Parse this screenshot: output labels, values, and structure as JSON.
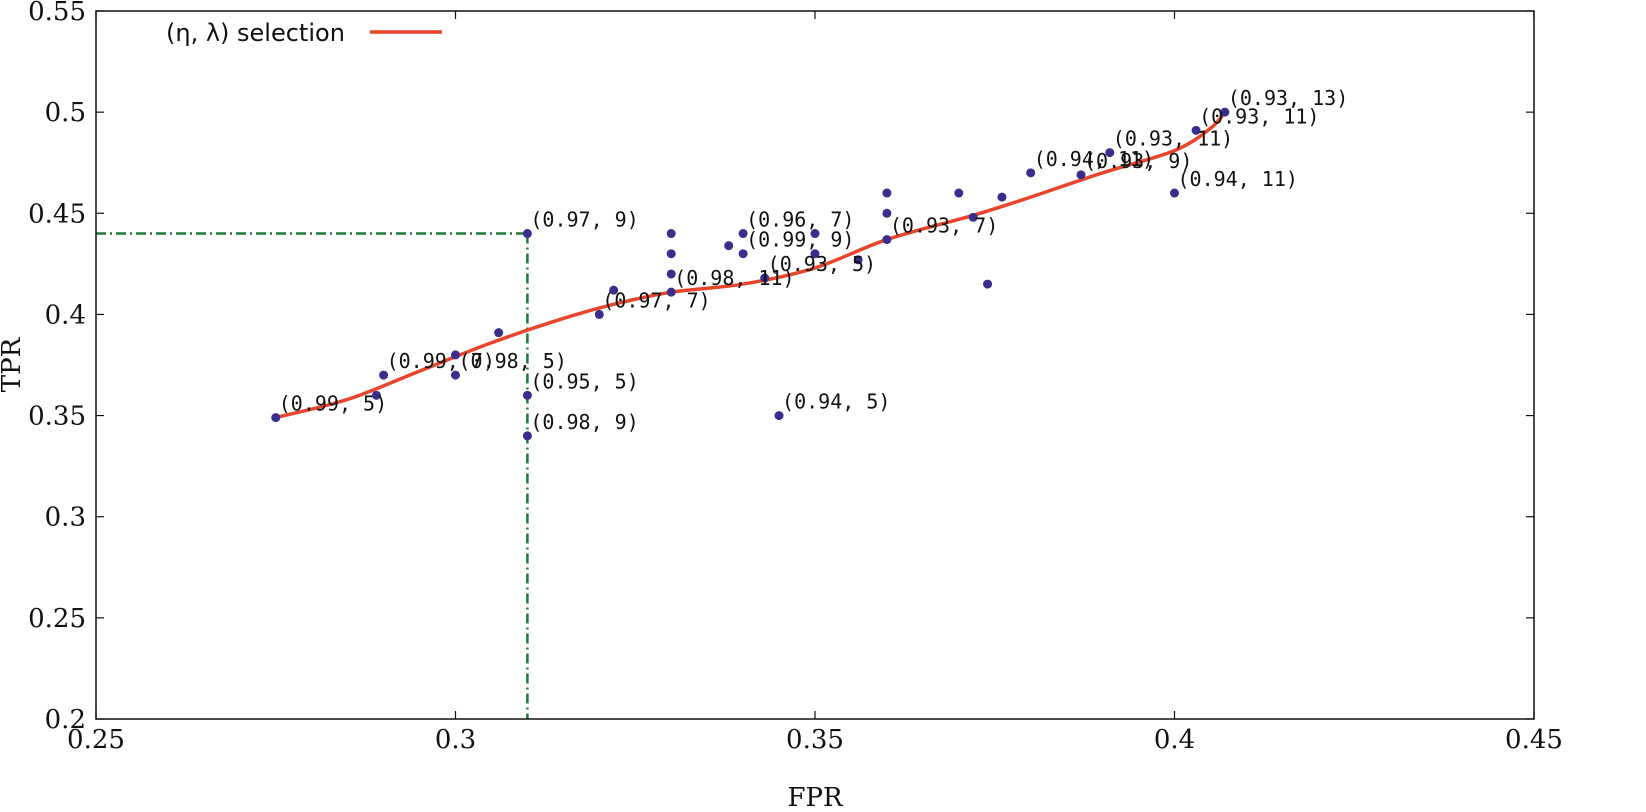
{
  "chart_data": {
    "type": "scatter",
    "xlabel": "FPR",
    "ylabel": "TPR",
    "xlim": [
      0.25,
      0.45
    ],
    "ylim": [
      0.2,
      0.55
    ],
    "x_ticks": [
      "0.25",
      "0.3",
      "0.35",
      "0.4",
      "0.45"
    ],
    "y_ticks": [
      "0.2",
      "0.25",
      "0.3",
      "0.35",
      "0.4",
      "0.45",
      "0.5",
      "0.55"
    ],
    "grid": false,
    "legend": {
      "placement": "top-left",
      "entries": [
        {
          "label": "(η, λ) selection",
          "color": "#e8452a"
        }
      ]
    },
    "points_color": "#3a2e8c",
    "curve_color": "#e8452a",
    "reference_color": "#1f7a3a",
    "points": [
      {
        "x": 0.275,
        "y": 0.349,
        "label": "(0.99, 5)"
      },
      {
        "x": 0.29,
        "y": 0.37,
        "label": "(0.99, 7)"
      },
      {
        "x": 0.289,
        "y": 0.36
      },
      {
        "x": 0.3,
        "y": 0.38
      },
      {
        "x": 0.3,
        "y": 0.37,
        "label": "(0.98, 5)"
      },
      {
        "x": 0.306,
        "y": 0.391
      },
      {
        "x": 0.31,
        "y": 0.44,
        "label": "(0.97, 9)"
      },
      {
        "x": 0.31,
        "y": 0.36,
        "label": "(0.95, 5)"
      },
      {
        "x": 0.31,
        "y": 0.34,
        "label": "(0.98, 9)"
      },
      {
        "x": 0.32,
        "y": 0.4,
        "label": "(0.97, 7)"
      },
      {
        "x": 0.322,
        "y": 0.412
      },
      {
        "x": 0.33,
        "y": 0.44
      },
      {
        "x": 0.33,
        "y": 0.43
      },
      {
        "x": 0.33,
        "y": 0.42
      },
      {
        "x": 0.33,
        "y": 0.411,
        "label": "(0.98, 11)"
      },
      {
        "x": 0.338,
        "y": 0.434
      },
      {
        "x": 0.34,
        "y": 0.44,
        "label": "(0.96, 7)"
      },
      {
        "x": 0.34,
        "y": 0.43,
        "label": "(0.99, 9)"
      },
      {
        "x": 0.345,
        "y": 0.35,
        "label": "(0.94, 5)"
      },
      {
        "x": 0.35,
        "y": 0.44
      },
      {
        "x": 0.35,
        "y": 0.43
      },
      {
        "x": 0.343,
        "y": 0.418,
        "label": "(0.93, 5)"
      },
      {
        "x": 0.356,
        "y": 0.427
      },
      {
        "x": 0.36,
        "y": 0.46
      },
      {
        "x": 0.36,
        "y": 0.45
      },
      {
        "x": 0.36,
        "y": 0.437,
        "label": "(0.93, 7)"
      },
      {
        "x": 0.37,
        "y": 0.46
      },
      {
        "x": 0.372,
        "y": 0.448
      },
      {
        "x": 0.374,
        "y": 0.415
      },
      {
        "x": 0.376,
        "y": 0.458
      },
      {
        "x": 0.38,
        "y": 0.47,
        "label": "(0.94, 11)"
      },
      {
        "x": 0.387,
        "y": 0.469,
        "label": "(0.93, 9)"
      },
      {
        "x": 0.391,
        "y": 0.48,
        "label": "(0.93, 11)"
      },
      {
        "x": 0.4,
        "y": 0.46,
        "label": "(0.94, 11)"
      },
      {
        "x": 0.403,
        "y": 0.491,
        "label": "(0.93, 11)"
      },
      {
        "x": 0.407,
        "y": 0.5,
        "label": "(0.93, 13)"
      }
    ],
    "curve": [
      {
        "x": 0.275,
        "y": 0.349
      },
      {
        "x": 0.285,
        "y": 0.358
      },
      {
        "x": 0.295,
        "y": 0.372
      },
      {
        "x": 0.305,
        "y": 0.386
      },
      {
        "x": 0.315,
        "y": 0.398
      },
      {
        "x": 0.322,
        "y": 0.405
      },
      {
        "x": 0.33,
        "y": 0.411
      },
      {
        "x": 0.34,
        "y": 0.415
      },
      {
        "x": 0.35,
        "y": 0.423
      },
      {
        "x": 0.36,
        "y": 0.437
      },
      {
        "x": 0.372,
        "y": 0.449
      },
      {
        "x": 0.38,
        "y": 0.458
      },
      {
        "x": 0.39,
        "y": 0.47
      },
      {
        "x": 0.4,
        "y": 0.481
      },
      {
        "x": 0.405,
        "y": 0.492
      },
      {
        "x": 0.407,
        "y": 0.5
      }
    ],
    "reference": {
      "x": 0.31,
      "y": 0.44
    }
  }
}
